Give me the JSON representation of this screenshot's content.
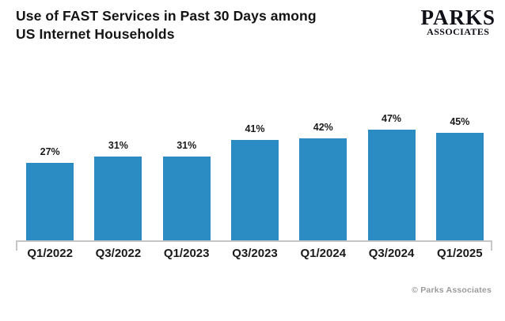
{
  "header": {
    "title_lines": [
      "Use of FAST Services in Past 30 Days among",
      "US Internet Households"
    ]
  },
  "logo": {
    "primary": "PARKS",
    "secondary": "ASSOCIATES"
  },
  "footer": {
    "credit": "© Parks Associates"
  },
  "colors": {
    "bar": "#2a8cc2",
    "axis": "#c6c6c6",
    "title_text": "#141414",
    "label_text": "#1a1a1a",
    "footer_text": "#9b9b9b"
  },
  "chart_data": {
    "type": "bar",
    "title": "Use of FAST Services in Past 30 Days among US Internet Households",
    "categories": [
      "Q1/2022",
      "Q3/2022",
      "Q1/2023",
      "Q3/2023",
      "Q1/2024",
      "Q3/2024",
      "Q1/2025"
    ],
    "values": [
      27,
      31,
      31,
      41,
      42,
      47,
      45
    ],
    "value_labels": [
      "27%",
      "31%",
      "31%",
      "41%",
      "42%",
      "47%",
      "45%"
    ],
    "unit": "%",
    "xlabel": "",
    "ylabel": "",
    "ylim": [
      0,
      50
    ],
    "grid": false,
    "legend": "none",
    "value_labels_position": "above-bars",
    "bar_color": "#2a8cc2"
  }
}
